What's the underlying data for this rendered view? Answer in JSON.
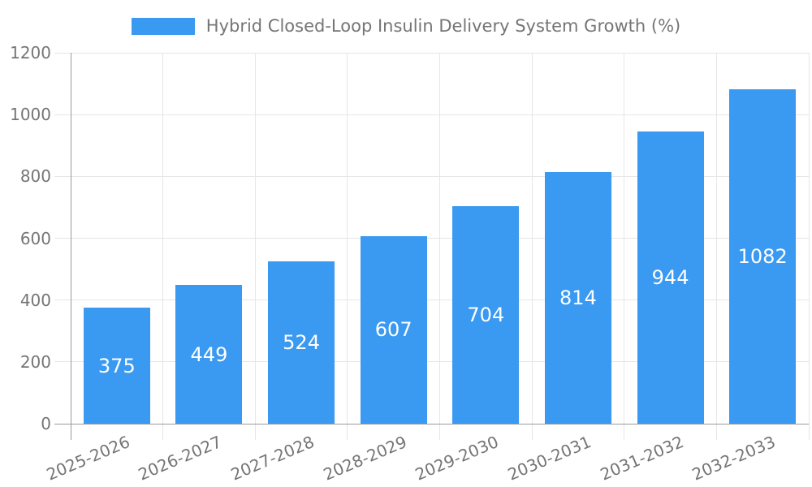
{
  "chart_data": {
    "type": "bar",
    "title": "Hybrid Closed-Loop Insulin Delivery System Growth (%)",
    "categories": [
      "2025-2026",
      "2026-2027",
      "2027-2028",
      "2028-2029",
      "2029-2030",
      "2030-2031",
      "2031-2032",
      "2032-2033"
    ],
    "values": [
      375,
      449,
      524,
      607,
      704,
      814,
      944,
      1082
    ],
    "xlabel": "",
    "ylabel": "",
    "ylim": [
      0,
      1200
    ],
    "yticks": [
      0,
      200,
      400,
      600,
      800,
      1000,
      1200
    ],
    "grid": true,
    "legend_position": "top-center",
    "x_tick_rotation_deg": -23,
    "value_labels": "inside-center",
    "colors": {
      "bar": "#3A99F0",
      "grid": "#E6E6E6",
      "axis": "#9B9B9B",
      "tick_text": "#757575",
      "value_text": "#FFFFFF",
      "background": "#FFFFFF"
    }
  }
}
